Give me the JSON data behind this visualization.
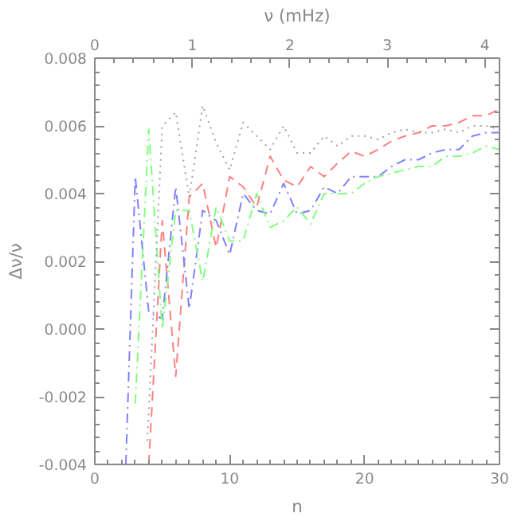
{
  "chart_data": {
    "type": "line",
    "xlabel": "n",
    "ylabel": "Δν/ν",
    "x2label": "ν (mHz)",
    "xlim": [
      0,
      30
    ],
    "xticks": [
      0,
      10,
      20,
      30
    ],
    "ylim": [
      -0.004,
      0.008
    ],
    "yticks": [
      {
        "value": -0.004,
        "label": "-0.004"
      },
      {
        "value": -0.002,
        "label": "-0.002"
      },
      {
        "value": 0,
        "label": "0.000"
      },
      {
        "value": 0.002,
        "label": "0.002"
      },
      {
        "value": 0.004,
        "label": "0.004"
      },
      {
        "value": 0.006,
        "label": "0.006"
      },
      {
        "value": 0.008,
        "label": "0.008"
      }
    ],
    "x2lim": [
      0,
      4.15
    ],
    "x2ticks": [
      0,
      1,
      2,
      3,
      4
    ],
    "grid": false,
    "series": [
      {
        "color": "#ff8080",
        "line_style": "dashed",
        "x": [
          4,
          5,
          6,
          7,
          8,
          9,
          10,
          11,
          12,
          13,
          14,
          15,
          16,
          17,
          18,
          19,
          20,
          21,
          22,
          23,
          24,
          25,
          26,
          27,
          28,
          29,
          30
        ],
        "values": [
          -0.004,
          0.0032,
          -0.0014,
          0.0039,
          0.0043,
          0.0024,
          0.0045,
          0.0042,
          0.0036,
          0.0051,
          0.0044,
          0.0042,
          0.0048,
          0.0045,
          0.0049,
          0.00525,
          0.0051,
          0.0053,
          0.00555,
          0.0057,
          0.0058,
          0.006,
          0.006,
          0.0061,
          0.0063,
          0.0063,
          0.0065
        ]
      },
      {
        "color": "#8080ff",
        "line_style": "dashdot",
        "x": [
          2.3,
          3,
          4,
          5,
          6,
          7,
          8,
          9,
          10,
          11,
          12,
          13,
          14,
          15,
          16,
          17,
          18,
          19,
          20,
          21,
          22,
          23,
          24,
          25,
          26,
          27,
          28,
          29,
          30
        ],
        "values": [
          -0.004,
          0.0045,
          0.0005,
          0.0003,
          0.0042,
          0.0006,
          0.0035,
          0.0032,
          0.0022,
          0.004,
          0.0035,
          0.0034,
          0.0043,
          0.0034,
          0.0035,
          0.0042,
          0.004,
          0.0045,
          0.0045,
          0.0045,
          0.0048,
          0.005,
          0.005,
          0.0052,
          0.0053,
          0.0053,
          0.0057,
          0.0058,
          0.0058
        ]
      },
      {
        "color": "#80ff80",
        "line_style": "dashdot",
        "x": [
          3,
          4,
          5,
          6,
          7,
          8,
          9,
          10,
          11,
          12,
          13,
          14,
          15,
          16,
          17,
          18,
          19,
          20,
          21,
          22,
          23,
          24,
          25,
          26,
          27,
          28,
          29,
          30
        ],
        "values": [
          -0.0022,
          0.0059,
          0.0,
          0.0035,
          0.0035,
          0.0014,
          0.0036,
          0.0026,
          0.0026,
          0.004,
          0.003,
          0.0032,
          0.0036,
          0.0031,
          0.004,
          0.004,
          0.004,
          0.0043,
          0.0045,
          0.0046,
          0.0047,
          0.0048,
          0.0048,
          0.0051,
          0.0051,
          0.0052,
          0.0054,
          0.0053
        ]
      },
      {
        "color": "#a0a0a0",
        "line_style": "dotted",
        "x": [
          3.9,
          5,
          6,
          7,
          8,
          9,
          10,
          11,
          12,
          13,
          14,
          15,
          16,
          17,
          18,
          19,
          20,
          21,
          22,
          23,
          24,
          25,
          26,
          27,
          28,
          29,
          30
        ],
        "values": [
          -0.0033,
          0.006,
          0.0064,
          0.0039,
          0.0066,
          0.0055,
          0.0047,
          0.0061,
          0.0057,
          0.0053,
          0.006,
          0.0052,
          0.0052,
          0.0057,
          0.0054,
          0.0057,
          0.0057,
          0.0056,
          0.0058,
          0.0059,
          0.0058,
          0.0058,
          0.0059,
          0.0058,
          0.006,
          0.006,
          0.0059
        ]
      }
    ]
  }
}
